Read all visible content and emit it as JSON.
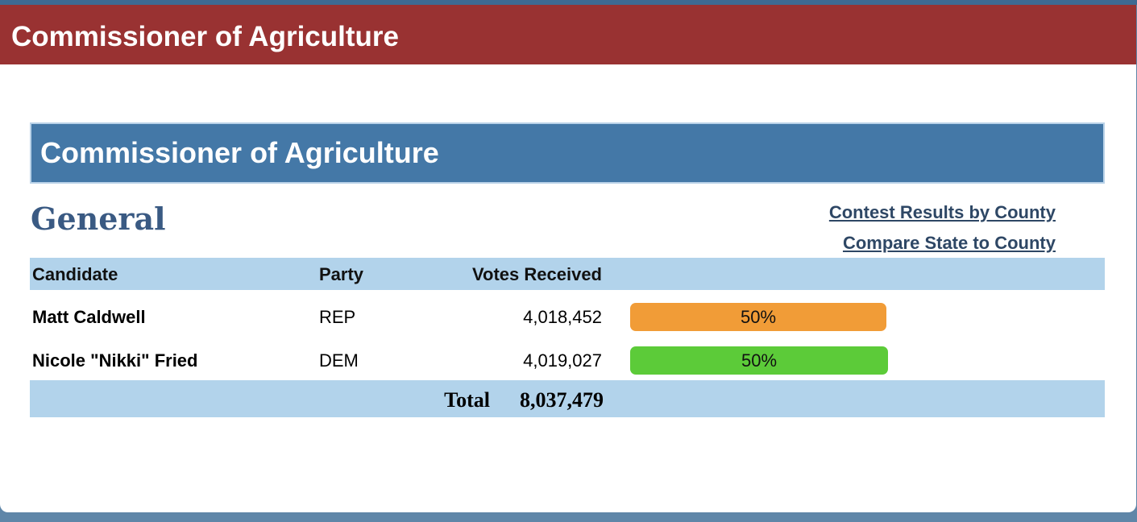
{
  "header": {
    "title": "Commissioner of Agriculture"
  },
  "contest": {
    "title": "Commissioner of Agriculture",
    "election_type": "General",
    "links": {
      "results_by_county": "Contest Results by County",
      "compare_state_to_county": "Compare State to County"
    },
    "columns": {
      "candidate": "Candidate",
      "party": "Party",
      "votes": "Votes Received"
    },
    "candidates": [
      {
        "name": "Matt Caldwell",
        "party": "REP",
        "votes": "4,018,452",
        "percent_label": "50%",
        "percent": 50,
        "color": "#f19c37"
      },
      {
        "name": "Nicole \"Nikki\" Fried",
        "party": "DEM",
        "votes": "4,019,027",
        "percent_label": "50%",
        "percent": 50,
        "color": "#5ccb39"
      }
    ],
    "total": {
      "label": "Total",
      "value": "8,037,479"
    }
  },
  "colors": {
    "header_bg": "#993232",
    "contest_bg": "#4478a7",
    "table_header_bg": "#b2d3eb",
    "link_color": "#2e4765"
  }
}
